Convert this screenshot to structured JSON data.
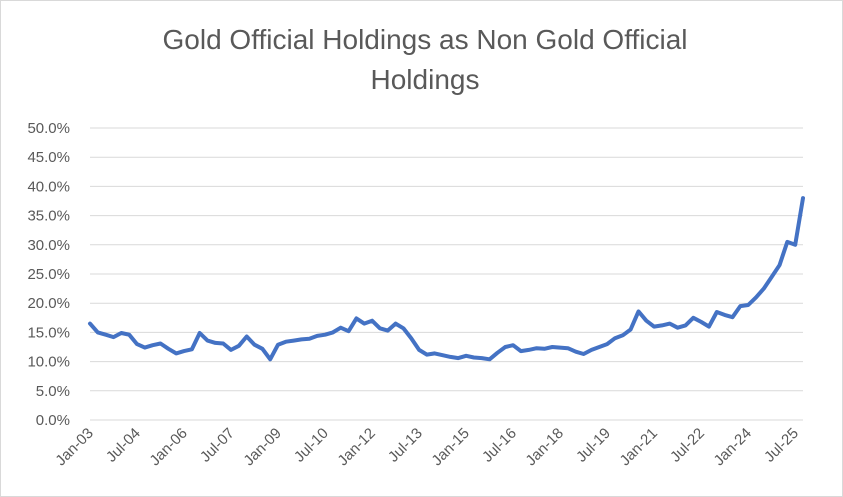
{
  "chart_data": {
    "type": "line",
    "title": "Gold Official Holdings as Non Gold Official Holdings",
    "xlabel": "",
    "ylabel": "",
    "ylim": [
      0,
      0.5
    ],
    "yticks": [
      "0.0%",
      "5.0%",
      "10.0%",
      "15.0%",
      "20.0%",
      "25.0%",
      "30.0%",
      "35.0%",
      "40.0%",
      "45.0%",
      "50.0%"
    ],
    "xticks": [
      "Jan-03",
      "Jul-04",
      "Jan-06",
      "Jul-07",
      "Jan-09",
      "Jul-10",
      "Jan-12",
      "Jul-13",
      "Jan-15",
      "Jul-16",
      "Jan-18",
      "Jul-19",
      "Jan-21",
      "Jul-22",
      "Jan-24",
      "Jul-25"
    ],
    "grid": true,
    "colors": {
      "line": "#4472c4",
      "grid": "#d9d9d9",
      "text": "#595959"
    },
    "series": [
      {
        "name": "",
        "x": [
          "2003-01",
          "2003-04",
          "2003-07",
          "2003-10",
          "2004-01",
          "2004-04",
          "2004-07",
          "2004-10",
          "2005-01",
          "2005-04",
          "2005-07",
          "2005-10",
          "2006-01",
          "2006-04",
          "2006-07",
          "2006-10",
          "2007-01",
          "2007-04",
          "2007-07",
          "2007-10",
          "2008-01",
          "2008-04",
          "2008-07",
          "2008-10",
          "2009-01",
          "2009-04",
          "2009-07",
          "2009-10",
          "2010-01",
          "2010-04",
          "2010-07",
          "2010-10",
          "2011-01",
          "2011-04",
          "2011-07",
          "2011-10",
          "2012-01",
          "2012-04",
          "2012-07",
          "2012-10",
          "2013-01",
          "2013-04",
          "2013-07",
          "2013-10",
          "2014-01",
          "2014-04",
          "2014-07",
          "2014-10",
          "2015-01",
          "2015-04",
          "2015-07",
          "2015-10",
          "2016-01",
          "2016-04",
          "2016-07",
          "2016-10",
          "2017-01",
          "2017-04",
          "2017-07",
          "2017-10",
          "2018-01",
          "2018-04",
          "2018-07",
          "2018-10",
          "2019-01",
          "2019-04",
          "2019-07",
          "2019-10",
          "2020-01",
          "2020-04",
          "2020-07",
          "2020-10",
          "2021-01",
          "2021-04",
          "2021-07",
          "2021-10",
          "2022-01",
          "2022-04",
          "2022-07",
          "2022-10",
          "2023-01",
          "2023-04",
          "2023-07",
          "2023-10",
          "2024-01",
          "2024-04",
          "2024-07",
          "2024-10",
          "2025-01",
          "2025-04",
          "2025-07",
          "2025-10"
        ],
        "values": [
          0.165,
          0.15,
          0.146,
          0.142,
          0.149,
          0.146,
          0.13,
          0.124,
          0.128,
          0.131,
          0.122,
          0.114,
          0.118,
          0.121,
          0.149,
          0.136,
          0.132,
          0.131,
          0.12,
          0.127,
          0.143,
          0.129,
          0.122,
          0.104,
          0.129,
          0.134,
          0.136,
          0.138,
          0.139,
          0.144,
          0.146,
          0.15,
          0.158,
          0.152,
          0.174,
          0.165,
          0.17,
          0.157,
          0.153,
          0.165,
          0.157,
          0.14,
          0.12,
          0.112,
          0.114,
          0.111,
          0.108,
          0.106,
          0.11,
          0.107,
          0.106,
          0.104,
          0.115,
          0.125,
          0.128,
          0.118,
          0.12,
          0.123,
          0.122,
          0.125,
          0.124,
          0.123,
          0.117,
          0.113,
          0.12,
          0.125,
          0.13,
          0.14,
          0.145,
          0.155,
          0.186,
          0.17,
          0.16,
          0.162,
          0.165,
          0.158,
          0.162,
          0.175,
          0.168,
          0.16,
          0.185,
          0.18,
          0.176,
          0.195,
          0.197,
          0.21,
          0.225,
          0.245,
          0.265,
          0.305,
          0.3,
          0.38
        ]
      }
    ]
  }
}
